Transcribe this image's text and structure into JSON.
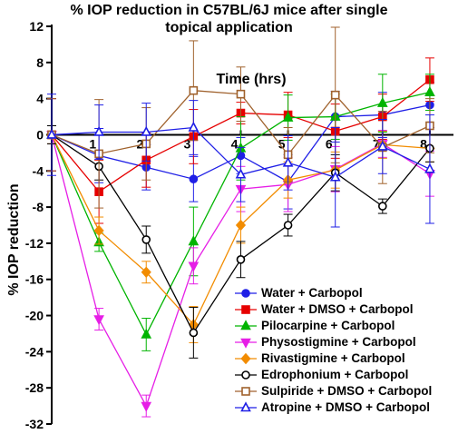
{
  "chart_data": {
    "type": "line",
    "title_line1": "% IOP reduction in C57BL/6J mice after single",
    "title_line2": "topical application",
    "xlabel": "Time (hrs)",
    "ylabel": "% IOP reduction",
    "xlim": [
      0,
      8.5
    ],
    "ylim": [
      -32,
      12
    ],
    "x_ticks": [
      1,
      2,
      3,
      4,
      5,
      6,
      7,
      8
    ],
    "y_ticks": [
      12,
      8,
      4,
      0,
      -4,
      -8,
      -12,
      -16,
      -20,
      -24,
      -28,
      -32
    ],
    "x": [
      0,
      1,
      2,
      3,
      4,
      5,
      6,
      7,
      8
    ],
    "series": [
      {
        "name": "Water + Carbopol",
        "color": "#1f1fe6",
        "marker": "circle",
        "filled": true,
        "values": [
          0,
          -2.3,
          -3.6,
          -4.9,
          -2.3,
          -5.2,
          2.0,
          2.2,
          3.3
        ],
        "errors": [
          4.0,
          3.0,
          2.5,
          2.5,
          2.0,
          3.0,
          2.8,
          2.5,
          2.5
        ]
      },
      {
        "name": "Water + DMSO + Carbopol",
        "color": "#e60000",
        "marker": "square",
        "filled": true,
        "values": [
          0,
          -6.3,
          -2.8,
          -0.2,
          2.4,
          2.2,
          0.4,
          2.0,
          6.1
        ],
        "errors": [
          4.0,
          3.5,
          3.0,
          3.0,
          1.2,
          2.5,
          3.0,
          2.5,
          2.4
        ]
      },
      {
        "name": "Pilocarpine + Carbopol",
        "color": "#00b400",
        "marker": "triangle-up",
        "filled": true,
        "values": [
          0,
          -11.9,
          -22.1,
          -11.8,
          -1.5,
          1.9,
          2.0,
          3.5,
          4.7
        ],
        "errors": [
          1.0,
          1.0,
          1.8,
          3.8,
          3.5,
          2.5,
          2.5,
          3.2,
          2.0
        ]
      },
      {
        "name": "Physostigmine + Carbopol",
        "color": "#e61ee6",
        "marker": "triangle-down",
        "filled": true,
        "values": [
          0,
          -20.4,
          -30.0,
          -14.5,
          -6.0,
          -5.5,
          -3.8,
          -1.0,
          -4.3
        ],
        "errors": [
          1.0,
          1.2,
          1.2,
          2.0,
          2.5,
          3.0,
          2.5,
          1.5,
          2.5
        ]
      },
      {
        "name": "Rivastigmine + Carbopol",
        "color": "#f28c00",
        "marker": "diamond",
        "filled": true,
        "values": [
          0,
          -10.6,
          -15.2,
          -21.0,
          -10.0,
          -5.0,
          -3.9,
          -1.1,
          -1.5
        ],
        "errors": [
          1.0,
          1.5,
          1.2,
          2.0,
          2.0,
          2.0,
          2.0,
          1.5,
          1.5
        ]
      },
      {
        "name": "Edrophonium + Carbopol",
        "color": "#000000",
        "marker": "circle",
        "filled": false,
        "values": [
          0,
          -3.5,
          -11.6,
          -21.9,
          -13.8,
          -10.0,
          -4.2,
          -7.9,
          -1.5
        ],
        "errors": [
          1.0,
          1.5,
          1.5,
          2.8,
          2.0,
          1.2,
          2.0,
          0.8,
          1.5
        ]
      },
      {
        "name": "Sulpiride + DMSO + Carbopol",
        "color": "#a0622d",
        "marker": "square",
        "filled": false,
        "values": [
          0,
          -2.1,
          -1.0,
          4.9,
          4.5,
          -2.2,
          4.4,
          -1.4,
          1.0
        ],
        "errors": [
          4.0,
          6.0,
          4.0,
          5.5,
          3.0,
          3.0,
          7.5,
          4.0,
          3.0
        ]
      },
      {
        "name": "Atropine + DMSO + Carbopol",
        "color": "#1f1fe6",
        "marker": "triangle-up",
        "filled": false,
        "values": [
          0,
          0.3,
          0.3,
          0.8,
          -4.4,
          -3.1,
          -4.7,
          -1.3,
          -3.8
        ],
        "errors": [
          4.5,
          3.0,
          3.2,
          3.0,
          3.0,
          3.0,
          5.5,
          3.0,
          6.0
        ]
      }
    ]
  }
}
